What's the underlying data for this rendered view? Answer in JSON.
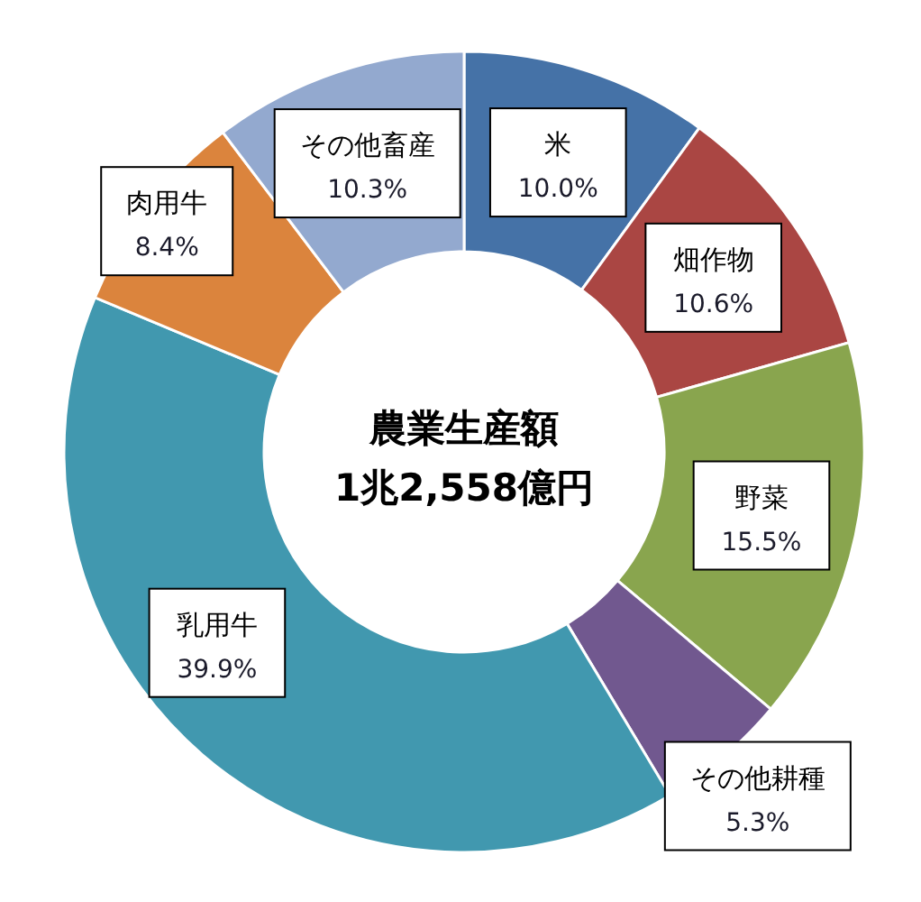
{
  "chart_data": {
    "type": "donut",
    "title": "農業生産額",
    "subtitle": "1兆2,558億円",
    "categories": [
      "米",
      "畑作物",
      "野菜",
      "その他耕種",
      "乳用牛",
      "肉用牛",
      "その他畜産"
    ],
    "values": [
      10.0,
      10.6,
      15.5,
      5.3,
      39.9,
      8.4,
      10.3
    ],
    "value_labels": [
      "10.0%",
      "10.6%",
      "15.5%",
      "5.3%",
      "39.9%",
      "8.4%",
      "10.3%"
    ],
    "colors": [
      "#4572a7",
      "#aa4643",
      "#89a54e",
      "#71588f",
      "#4198af",
      "#db843d",
      "#93a9cf"
    ]
  }
}
